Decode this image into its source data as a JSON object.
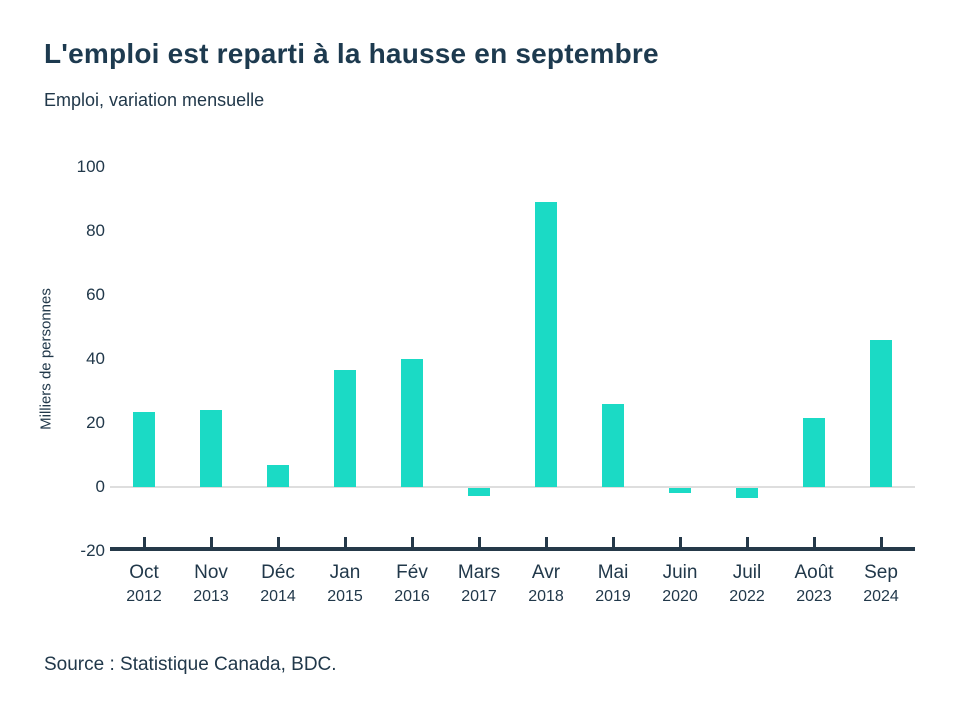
{
  "header": {
    "title": "L'emploi est reparti à la hausse en septembre",
    "subtitle": "Emploi, variation mensuelle"
  },
  "chart_data": {
    "type": "bar",
    "title": "L'emploi est reparti à la hausse en septembre",
    "subtitle": "Emploi, variation mensuelle",
    "ylabel": "Milliers de personnes",
    "xlabel": "",
    "categories": [
      {
        "month": "Oct",
        "year": "2012"
      },
      {
        "month": "Nov",
        "year": "2013"
      },
      {
        "month": "Déc",
        "year": "2014"
      },
      {
        "month": "Jan",
        "year": "2015"
      },
      {
        "month": "Fév",
        "year": "2016"
      },
      {
        "month": "Mars",
        "year": "2017"
      },
      {
        "month": "Avr",
        "year": "2018"
      },
      {
        "month": "Mai",
        "year": "2019"
      },
      {
        "month": "Juin",
        "year": "2020"
      },
      {
        "month": "Juil",
        "year": "2022"
      },
      {
        "month": "Août",
        "year": "2023"
      },
      {
        "month": "Sep",
        "year": "2024"
      }
    ],
    "values": [
      23.5,
      24,
      7,
      36.5,
      40,
      -2.5,
      89,
      26,
      -1.5,
      -3,
      21.5,
      46
    ],
    "yticks": [
      100,
      80,
      60,
      40,
      20,
      0,
      -20
    ],
    "ylim": [
      -20,
      100
    ],
    "grid": "zero-line-only",
    "legend": "none",
    "bar_color": "#1bdac5",
    "axis_color": "#253949",
    "zero_line_color": "#dedede",
    "text_color": "#21384a"
  },
  "footer": {
    "source": "Source : Statistique Canada, BDC."
  }
}
